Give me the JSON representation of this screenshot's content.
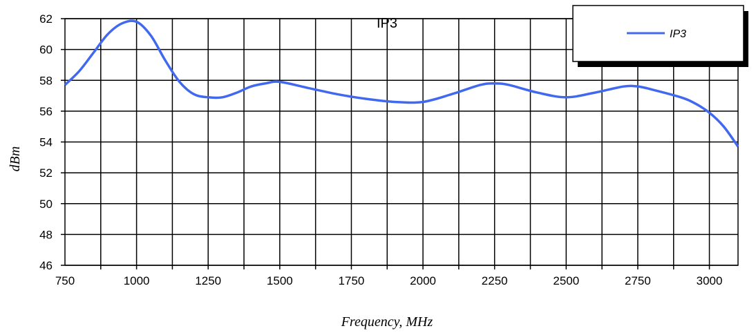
{
  "chart_data": {
    "type": "line",
    "title": "IP3",
    "xlabel": "Frequency, MHz",
    "ylabel": "dBm",
    "xlim": [
      750,
      3100
    ],
    "ylim": [
      46,
      62
    ],
    "xticks": [
      750,
      1000,
      1250,
      1500,
      1750,
      2000,
      2250,
      2500,
      2750,
      3000
    ],
    "yticks": [
      46,
      48,
      50,
      52,
      54,
      56,
      58,
      60,
      62
    ],
    "grid": true,
    "legend_position": "top-right",
    "colors": {
      "series": "#4169f0",
      "grid": "#000000"
    },
    "series": [
      {
        "name": "IP3",
        "x": [
          750,
          800,
          850,
          900,
          950,
          1000,
          1050,
          1100,
          1150,
          1200,
          1250,
          1300,
          1350,
          1400,
          1450,
          1500,
          1600,
          1700,
          1800,
          1900,
          2000,
          2100,
          2200,
          2250,
          2300,
          2400,
          2500,
          2600,
          2700,
          2750,
          2800,
          2900,
          2950,
          3000,
          3050,
          3100
        ],
        "values": [
          57.7,
          58.6,
          59.8,
          61.0,
          61.7,
          61.8,
          60.9,
          59.3,
          57.9,
          57.1,
          56.9,
          56.9,
          57.2,
          57.6,
          57.8,
          57.9,
          57.5,
          57.1,
          56.8,
          56.6,
          56.6,
          57.1,
          57.7,
          57.8,
          57.7,
          57.2,
          56.9,
          57.2,
          57.6,
          57.6,
          57.4,
          56.9,
          56.5,
          55.9,
          55.0,
          53.7
        ]
      }
    ]
  }
}
